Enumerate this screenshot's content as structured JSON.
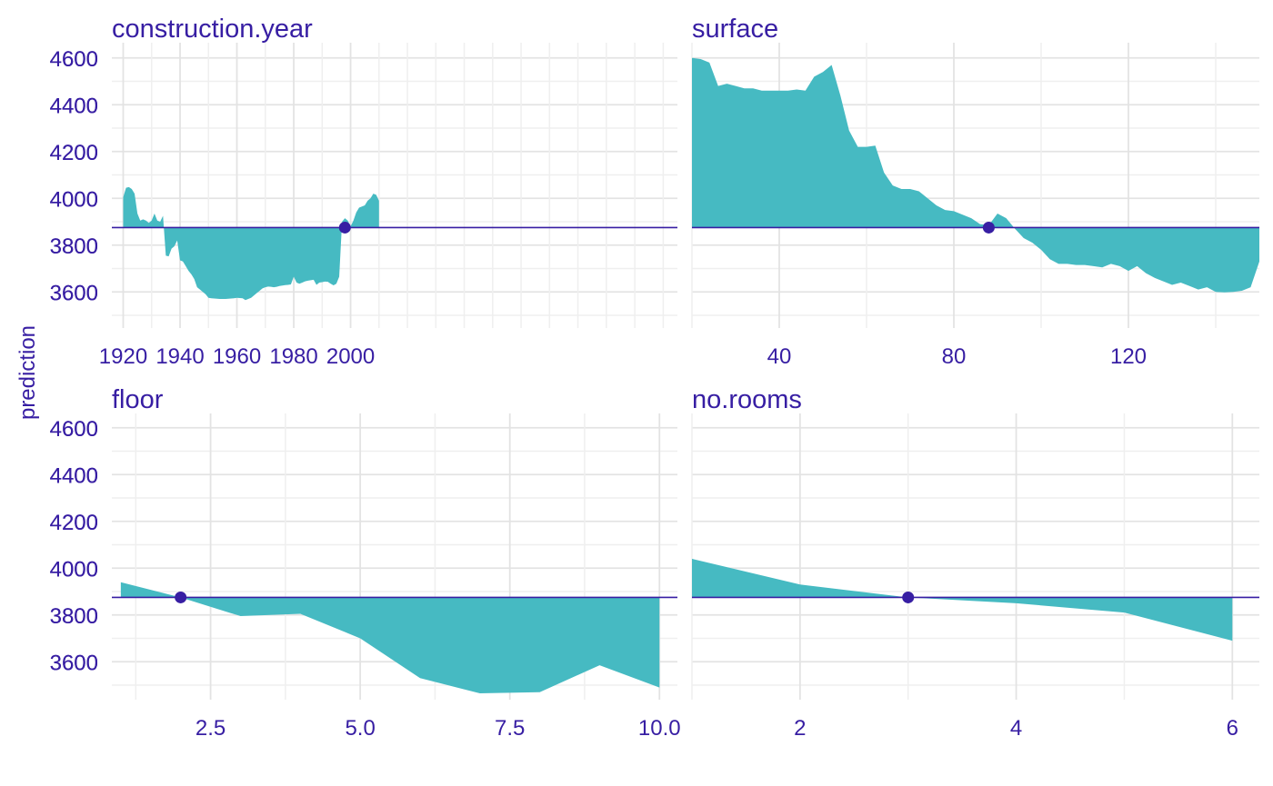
{
  "colors": {
    "fill": "#46BAC2",
    "line": "#371EA3",
    "text": "#371EA3",
    "grid_major": "#e3e3e3",
    "grid_minor": "#efefef"
  },
  "chart_data": {
    "type": "area",
    "ylabel": "prediction",
    "ylim": [
      3470,
      4630
    ],
    "yticks": [
      3600,
      3800,
      4000,
      4200,
      4400,
      4600
    ],
    "baseline": 3875,
    "panels": [
      {
        "title": "construction.year",
        "xlim": [
          1916,
          2115
        ],
        "xticks": [
          1920,
          1940,
          1960,
          1980,
          2000
        ],
        "tick_labels": [
          "1920",
          "1940",
          "1960",
          "1980",
          "2000"
        ],
        "observation": {
          "x": 1998,
          "y": 3875
        },
        "x": [
          1920,
          1921,
          1922,
          1923,
          1924,
          1925,
          1926,
          1927,
          1928,
          1929,
          1930,
          1931,
          1932,
          1933,
          1934,
          1935,
          1936,
          1937,
          1938,
          1939,
          1940,
          1941,
          1942,
          1943,
          1944,
          1945,
          1946,
          1947,
          1948,
          1949,
          1950,
          1951,
          1952,
          1953,
          1954,
          1955,
          1956,
          1957,
          1958,
          1959,
          1960,
          1961,
          1962,
          1963,
          1964,
          1965,
          1966,
          1967,
          1968,
          1969,
          1970,
          1971,
          1972,
          1973,
          1974,
          1975,
          1976,
          1977,
          1978,
          1979,
          1980,
          1981,
          1982,
          1983,
          1984,
          1985,
          1986,
          1987,
          1988,
          1989,
          1990,
          1991,
          1992,
          1993,
          1994,
          1995,
          1996,
          1997,
          1998,
          1999,
          2000,
          2001,
          2002,
          2003,
          2004,
          2005,
          2006,
          2007,
          2008,
          2009,
          2010
        ],
        "y": [
          4005,
          4045,
          4048,
          4040,
          4020,
          3935,
          3905,
          3910,
          3905,
          3895,
          3905,
          3935,
          3905,
          3900,
          3925,
          3755,
          3752,
          3785,
          3795,
          3820,
          3735,
          3730,
          3710,
          3690,
          3675,
          3655,
          3620,
          3610,
          3600,
          3590,
          3575,
          3573,
          3572,
          3571,
          3570,
          3570,
          3570,
          3571,
          3572,
          3573,
          3575,
          3574,
          3573,
          3565,
          3570,
          3575,
          3585,
          3595,
          3605,
          3615,
          3620,
          3623,
          3622,
          3620,
          3622,
          3625,
          3627,
          3629,
          3630,
          3632,
          3665,
          3640,
          3635,
          3640,
          3645,
          3648,
          3650,
          3652,
          3630,
          3640,
          3642,
          3644,
          3643,
          3635,
          3628,
          3635,
          3665,
          3900,
          3915,
          3905,
          3880,
          3905,
          3940,
          3960,
          3965,
          3970,
          3990,
          4000,
          4020,
          4015,
          3990
        ]
      },
      {
        "title": "surface",
        "xlim": [
          20,
          150
        ],
        "xticks": [
          40,
          80,
          120
        ],
        "tick_labels": [
          "40",
          "80",
          "120"
        ],
        "observation": {
          "x": 88,
          "y": 3875
        },
        "x": [
          20,
          22,
          24,
          26,
          28,
          30,
          32,
          34,
          36,
          38,
          40,
          42,
          44,
          46,
          48,
          50,
          52,
          54,
          56,
          58,
          60,
          62,
          64,
          66,
          68,
          70,
          72,
          74,
          76,
          78,
          80,
          82,
          84,
          86,
          88,
          90,
          92,
          94,
          96,
          98,
          100,
          102,
          104,
          106,
          108,
          110,
          112,
          114,
          116,
          118,
          120,
          122,
          124,
          126,
          128,
          130,
          132,
          134,
          136,
          138,
          140,
          142,
          144,
          146,
          148,
          150
        ],
        "y": [
          4600,
          4595,
          4580,
          4480,
          4490,
          4480,
          4470,
          4470,
          4460,
          4460,
          4460,
          4460,
          4465,
          4460,
          4520,
          4540,
          4570,
          4440,
          4290,
          4220,
          4220,
          4225,
          4110,
          4055,
          4040,
          4040,
          4030,
          4000,
          3970,
          3950,
          3945,
          3930,
          3915,
          3890,
          3885,
          3935,
          3915,
          3870,
          3830,
          3810,
          3780,
          3740,
          3720,
          3720,
          3715,
          3715,
          3710,
          3705,
          3720,
          3710,
          3690,
          3710,
          3680,
          3660,
          3645,
          3630,
          3640,
          3625,
          3610,
          3620,
          3600,
          3598,
          3600,
          3605,
          3620,
          3730
        ]
      },
      {
        "title": "floor",
        "xlim": [
          0.85,
          10.3
        ],
        "xticks": [
          2.5,
          5.0,
          7.5,
          10.0
        ],
        "tick_labels": [
          "2.5",
          "5.0",
          "7.5",
          "10.0"
        ],
        "observation": {
          "x": 2,
          "y": 3875
        },
        "x": [
          1,
          2,
          3,
          4,
          5,
          6,
          7,
          8,
          9,
          10
        ],
        "y": [
          3940,
          3875,
          3795,
          3805,
          3700,
          3530,
          3465,
          3470,
          3585,
          3490
        ]
      },
      {
        "title": "no.rooms",
        "xlim": [
          1,
          6.25
        ],
        "xticks": [
          2,
          4,
          6
        ],
        "tick_labels": [
          "2",
          "4",
          "6"
        ],
        "observation": {
          "x": 3,
          "y": 3875
        },
        "x": [
          1,
          2,
          3,
          4,
          5,
          6
        ],
        "y": [
          4040,
          3930,
          3875,
          3850,
          3810,
          3690
        ]
      }
    ]
  }
}
